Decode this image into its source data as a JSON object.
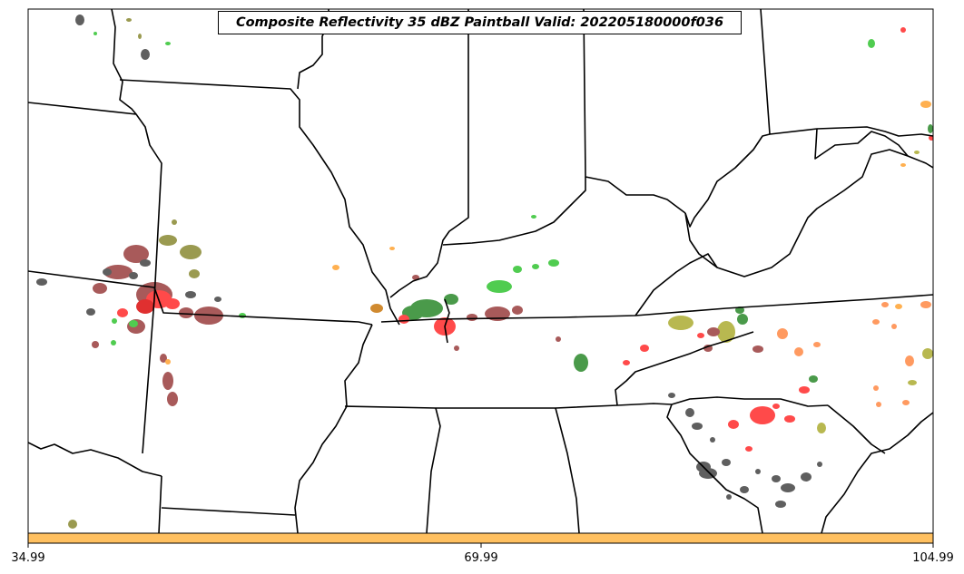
{
  "map": {
    "title": "Composite Reflectivity 35 dBZ Paintball Valid: 202205180000f036",
    "colorbar": {
      "color": "#ffc060",
      "ticks": [
        "34.99",
        "69.99",
        "104.99"
      ]
    },
    "colors": {
      "border": "#000000",
      "background": "#ffffff",
      "gray": "#5f5f5f",
      "brown": "#a85a5a",
      "olive": "#9a9a50",
      "red": "#ff4a4a",
      "green": "#50cc50",
      "darkgreen": "#4a9a4a",
      "yellow": "#b8b850",
      "orange": "#ffb050",
      "salmon": "#ff9a60"
    }
  }
}
